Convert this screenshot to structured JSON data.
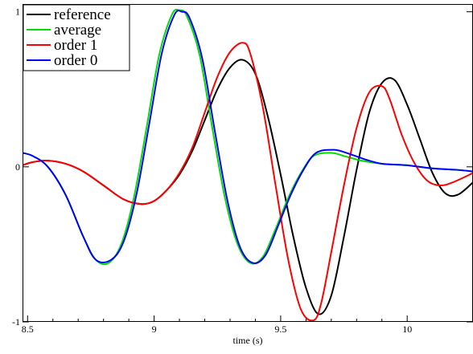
{
  "chart_data": {
    "type": "line",
    "title": "",
    "xlabel": "time (s)",
    "ylabel": "",
    "xlim": [
      8.48,
      10.26
    ],
    "ylim": [
      -1.0,
      1.05
    ],
    "x_ticks": [
      8.5,
      9,
      9.5,
      10
    ],
    "x_tick_labels": [
      "8.5",
      "9",
      "9.5",
      "10"
    ],
    "y_ticks": [
      -1,
      0,
      1
    ],
    "y_tick_labels": [
      "-1",
      "0",
      "1"
    ],
    "grid": false,
    "legend_position": "top-left",
    "series": [
      {
        "name": "reference",
        "color": "#000000",
        "x": [
          8.48,
          8.52,
          8.58,
          8.65,
          8.72,
          8.8,
          8.88,
          8.95,
          9.0,
          9.05,
          9.1,
          9.15,
          9.2,
          9.25,
          9.3,
          9.35,
          9.4,
          9.45,
          9.5,
          9.55,
          9.6,
          9.65,
          9.7,
          9.75,
          9.8,
          9.85,
          9.9,
          9.95,
          10.0,
          10.05,
          10.1,
          10.15,
          10.2,
          10.26
        ],
        "y": [
          0.01,
          0.03,
          0.04,
          0.02,
          -0.03,
          -0.12,
          -0.21,
          -0.24,
          -0.22,
          -0.15,
          -0.05,
          0.1,
          0.3,
          0.5,
          0.64,
          0.69,
          0.6,
          0.32,
          -0.05,
          -0.45,
          -0.78,
          -0.95,
          -0.83,
          -0.45,
          -0.02,
          0.35,
          0.54,
          0.56,
          0.4,
          0.18,
          -0.04,
          -0.17,
          -0.18,
          -0.1
        ]
      },
      {
        "name": "average",
        "color": "#00dd00",
        "x": [
          8.48,
          8.52,
          8.58,
          8.65,
          8.72,
          8.77,
          8.82,
          8.87,
          8.92,
          8.97,
          9.02,
          9.07,
          9.1,
          9.13,
          9.18,
          9.23,
          9.28,
          9.33,
          9.38,
          9.43,
          9.48,
          9.53,
          9.58,
          9.63,
          9.7,
          9.75,
          9.82,
          9.9,
          10.0,
          10.1,
          10.2,
          10.26
        ],
        "y": [
          0.09,
          0.07,
          0.0,
          -0.18,
          -0.45,
          -0.6,
          -0.62,
          -0.5,
          -0.2,
          0.25,
          0.72,
          0.98,
          1.01,
          0.97,
          0.72,
          0.25,
          -0.2,
          -0.5,
          -0.62,
          -0.58,
          -0.4,
          -0.2,
          -0.04,
          0.07,
          0.09,
          0.07,
          0.04,
          0.02,
          0.01,
          -0.01,
          -0.02,
          -0.03
        ]
      },
      {
        "name": "order 1",
        "color": "#ff0000",
        "x": [
          8.48,
          8.52,
          8.58,
          8.65,
          8.72,
          8.8,
          8.88,
          8.95,
          9.0,
          9.05,
          9.1,
          9.15,
          9.2,
          9.25,
          9.3,
          9.35,
          9.38,
          9.43,
          9.48,
          9.53,
          9.58,
          9.63,
          9.66,
          9.7,
          9.75,
          9.8,
          9.85,
          9.9,
          9.93,
          9.98,
          10.03,
          10.08,
          10.13,
          10.18,
          10.26
        ],
        "y": [
          0.01,
          0.03,
          0.04,
          0.02,
          -0.03,
          -0.12,
          -0.21,
          -0.24,
          -0.22,
          -0.15,
          -0.04,
          0.12,
          0.35,
          0.58,
          0.74,
          0.8,
          0.73,
          0.38,
          -0.12,
          -0.6,
          -0.92,
          -0.99,
          -0.88,
          -0.55,
          -0.12,
          0.25,
          0.48,
          0.52,
          0.44,
          0.2,
          0.02,
          -0.09,
          -0.12,
          -0.1,
          -0.04
        ]
      },
      {
        "name": "order 0",
        "color": "#0000ff",
        "x": [
          8.48,
          8.52,
          8.58,
          8.65,
          8.72,
          8.77,
          8.83,
          8.88,
          8.93,
          8.98,
          9.03,
          9.08,
          9.11,
          9.14,
          9.19,
          9.24,
          9.29,
          9.34,
          9.39,
          9.44,
          9.49,
          9.54,
          9.59,
          9.64,
          9.71,
          9.76,
          9.83,
          9.9,
          10.0,
          10.1,
          10.2,
          10.26
        ],
        "y": [
          0.09,
          0.07,
          0.0,
          -0.18,
          -0.45,
          -0.6,
          -0.6,
          -0.48,
          -0.18,
          0.27,
          0.73,
          0.98,
          1.0,
          0.96,
          0.7,
          0.23,
          -0.22,
          -0.52,
          -0.62,
          -0.57,
          -0.38,
          -0.18,
          -0.02,
          0.09,
          0.11,
          0.09,
          0.05,
          0.02,
          0.01,
          -0.01,
          -0.02,
          -0.03
        ]
      }
    ]
  }
}
